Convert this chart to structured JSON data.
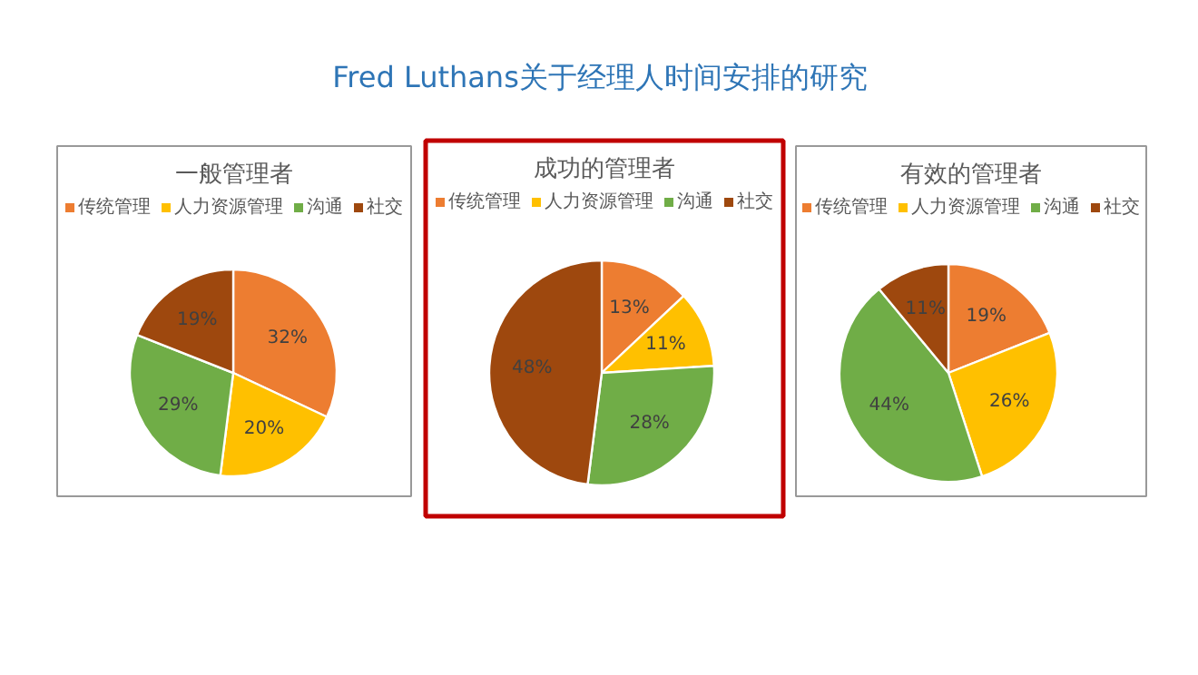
{
  "chart_data": [
    {
      "type": "other",
      "title": "Fred Luthans关于经理人时间安排的研究"
    },
    {
      "type": "pie",
      "title": "一般管理者",
      "categories": [
        "传统管理",
        "人力资源管理",
        "沟通",
        "社交"
      ],
      "values": [
        32,
        20,
        29,
        19
      ],
      "value_labels": [
        "32%",
        "20%",
        "29%",
        "19%"
      ],
      "colors": [
        "#ed7d31",
        "#ffc000",
        "#70ad47",
        "#9e480e"
      ],
      "legend": "top"
    },
    {
      "type": "pie",
      "title": "成功的管理者",
      "categories": [
        "传统管理",
        "人力资源管理",
        "沟通",
        "社交"
      ],
      "values": [
        13,
        11,
        28,
        48
      ],
      "value_labels": [
        "13%",
        "11%",
        "28%",
        "48%"
      ],
      "colors": [
        "#ed7d31",
        "#ffc000",
        "#70ad47",
        "#9e480e"
      ],
      "legend": "top"
    },
    {
      "type": "pie",
      "title": "有效的管理者",
      "categories": [
        "传统管理",
        "人力资源管理",
        "沟通",
        "社交"
      ],
      "values": [
        19,
        26,
        44,
        11
      ],
      "value_labels": [
        "19%",
        "26%",
        "44%",
        "11%"
      ],
      "colors": [
        "#ed7d31",
        "#ffc000",
        "#70ad47",
        "#9e480e"
      ],
      "legend": "top"
    }
  ]
}
